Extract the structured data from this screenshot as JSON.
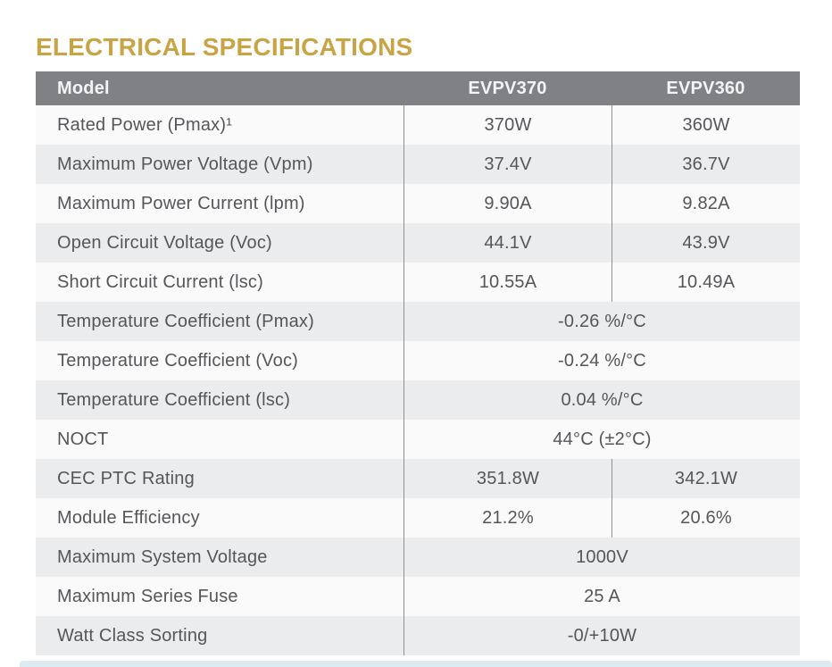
{
  "section": {
    "title": "ELECTRICAL SPECIFICATIONS"
  },
  "table": {
    "header": {
      "model": "Model",
      "columns": [
        "EVPV370",
        "EVPV360"
      ]
    },
    "rows": [
      {
        "label": "Rated Power (Pmax)¹",
        "values": [
          "370W",
          "360W"
        ]
      },
      {
        "label": "Maximum Power Voltage (Vpm)",
        "values": [
          "37.4V",
          "36.7V"
        ]
      },
      {
        "label": "Maximum Power Current (lpm)",
        "values": [
          "9.90A",
          "9.82A"
        ]
      },
      {
        "label": "Open Circuit Voltage (Voc)",
        "values": [
          "44.1V",
          "43.9V"
        ]
      },
      {
        "label": "Short Circuit Current (lsc)",
        "values": [
          "10.55A",
          "10.49A"
        ]
      },
      {
        "label": "Temperature Coefficient (Pmax)",
        "values": [
          "-0.26 %/°C"
        ]
      },
      {
        "label": "Temperature Coefficient (Voc)",
        "values": [
          "-0.24 %/°C"
        ]
      },
      {
        "label": "Temperature Coefficient (lsc)",
        "values": [
          "0.04 %/°C"
        ]
      },
      {
        "label": "NOCT",
        "values": [
          "44°C (±2°C)"
        ]
      },
      {
        "label": "CEC PTC Rating",
        "values": [
          "351.8W",
          "342.1W"
        ]
      },
      {
        "label": "Module Efficiency",
        "values": [
          "21.2%",
          "20.6%"
        ]
      },
      {
        "label": "Maximum System Voltage",
        "values": [
          "1000V"
        ]
      },
      {
        "label": "Maximum Series Fuse",
        "values": [
          "25 A"
        ]
      },
      {
        "label": "Watt Class Sorting",
        "values": [
          "-0/+10W"
        ]
      }
    ]
  },
  "colors": {
    "accent": "#C9A445",
    "header-bg": "#808185",
    "header-text": "#F4F4F5",
    "row-light": "#FAFAFB",
    "row-dark": "#EBECEE",
    "text": "#545659",
    "divider": "#8E8F93",
    "strip": "#DCEBF0"
  }
}
